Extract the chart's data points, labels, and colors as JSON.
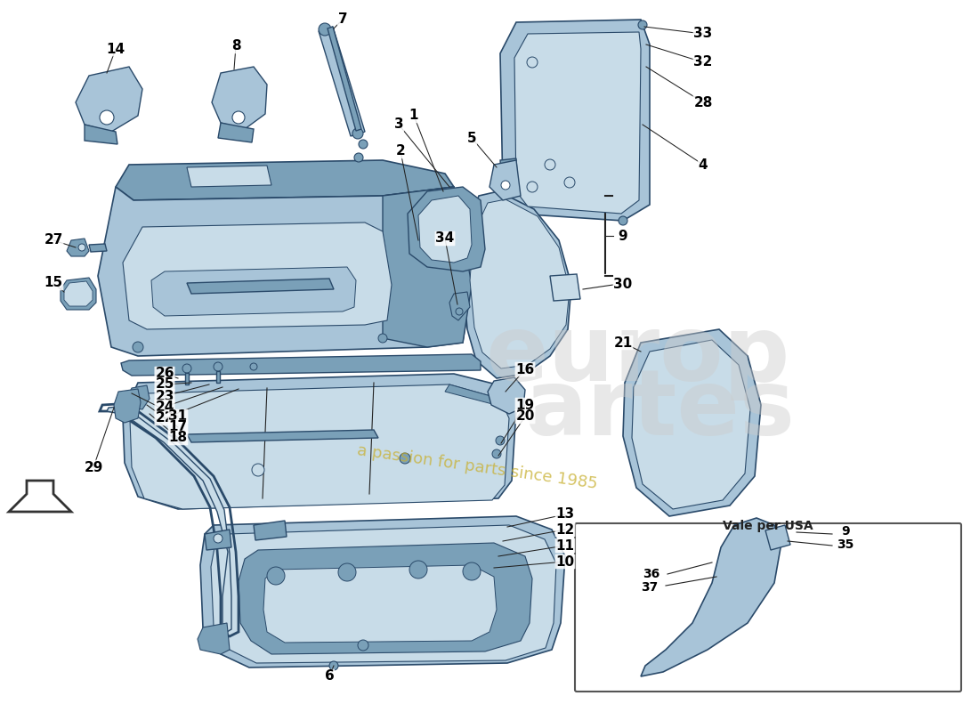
{
  "background_color": "#ffffff",
  "part_color": "#a8c4d8",
  "part_color_light": "#c8dce8",
  "part_color_dark": "#7aa0b8",
  "outline_color": "#2a4a6a",
  "text_color": "#000000",
  "line_color": "#222222",
  "inset_label": "Vale per USA",
  "wm1": "europ",
  "wm2": "artes",
  "wm3": "a passion for parts since 1985"
}
